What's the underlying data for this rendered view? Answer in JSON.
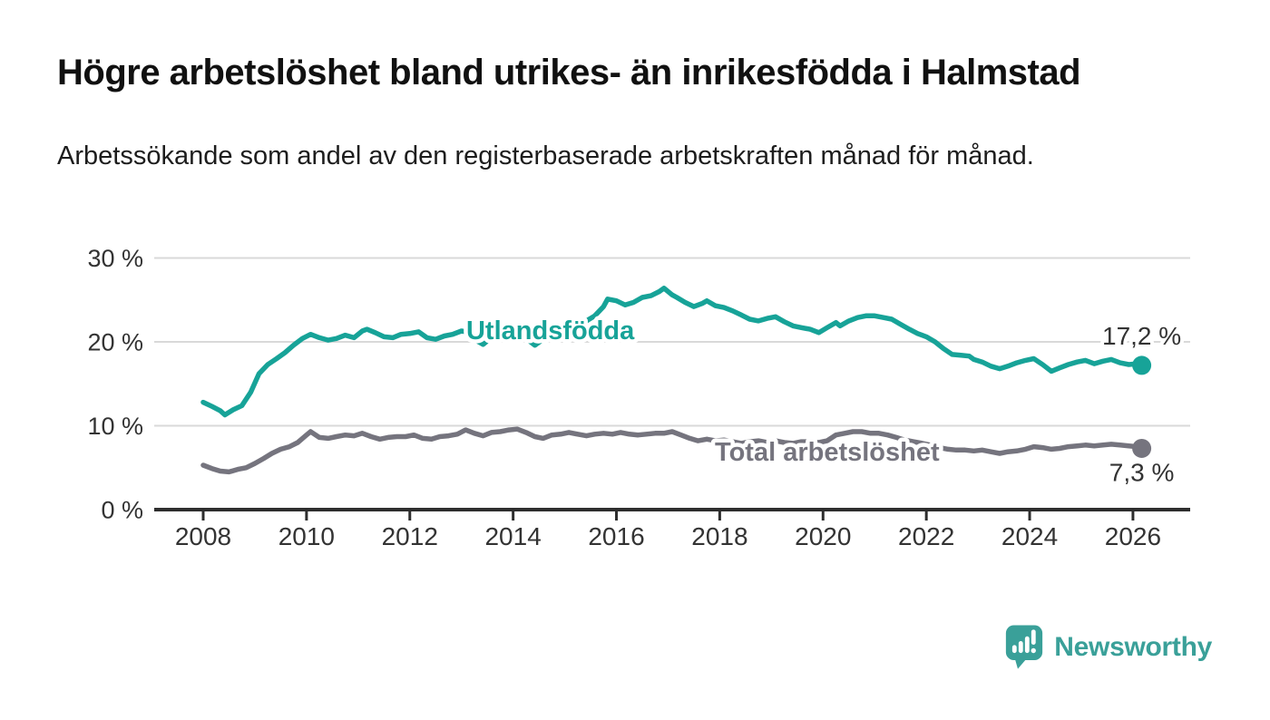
{
  "title": "Högre arbetslöshet bland utrikes- än inrikesfödda i Halmstad",
  "subtitle": "Arbetssökande som andel av den registerbaserade arbetskraften månad för månad.",
  "branding": {
    "name": "Newsworthy",
    "icon": "bar-chart-speech-bubble-icon",
    "color": "#3aa099"
  },
  "colors": {
    "series_foreign_born": "#17a398",
    "series_total": "#75747e",
    "axis": "#2e2e2e",
    "gridline": "#d9d9d9",
    "tick_text": "#333333",
    "value_label_text": "#333333",
    "background": "#ffffff"
  },
  "chart_data": {
    "type": "line",
    "title": "Högre arbetslöshet bland utrikes- än inrikesfödda i Halmstad",
    "subtitle": "Arbetssökande som andel av den registerbaserade arbetskraften månad för månad.",
    "xlabel": "",
    "ylabel": "",
    "x_unit": "year (monthly data)",
    "y_unit": "%",
    "ylim": [
      0,
      30
    ],
    "xlim": [
      2008,
      2027
    ],
    "grid": "horizontal",
    "legend_position": "inline-labels",
    "yticks": [
      0,
      10,
      20,
      30
    ],
    "ytick_labels": [
      "0 %",
      "10 %",
      "20 %",
      "30 %"
    ],
    "xticks": [
      2008,
      2010,
      2012,
      2014,
      2016,
      2018,
      2020,
      2022,
      2024,
      2026
    ],
    "series": [
      {
        "id": "utlandsfodda",
        "name": "Utlandsfödda",
        "color": "#17a398",
        "end_value": 17.2,
        "end_label": "17,2 %",
        "label_position": {
          "x": 2014.72,
          "y": 21.3
        },
        "points": [
          [
            2008.0,
            12.8
          ],
          [
            2008.17,
            12.3
          ],
          [
            2008.33,
            11.8
          ],
          [
            2008.42,
            11.3
          ],
          [
            2008.58,
            11.9
          ],
          [
            2008.75,
            12.4
          ],
          [
            2008.92,
            14.0
          ],
          [
            2009.08,
            16.2
          ],
          [
            2009.25,
            17.3
          ],
          [
            2009.42,
            18.0
          ],
          [
            2009.58,
            18.7
          ],
          [
            2009.75,
            19.6
          ],
          [
            2009.92,
            20.4
          ],
          [
            2010.08,
            20.9
          ],
          [
            2010.25,
            20.5
          ],
          [
            2010.42,
            20.2
          ],
          [
            2010.58,
            20.4
          ],
          [
            2010.75,
            20.8
          ],
          [
            2010.92,
            20.5
          ],
          [
            2011.08,
            21.3
          ],
          [
            2011.17,
            21.5
          ],
          [
            2011.33,
            21.1
          ],
          [
            2011.5,
            20.6
          ],
          [
            2011.67,
            20.5
          ],
          [
            2011.83,
            20.9
          ],
          [
            2012.0,
            21.0
          ],
          [
            2012.17,
            21.2
          ],
          [
            2012.33,
            20.5
          ],
          [
            2012.5,
            20.3
          ],
          [
            2012.67,
            20.7
          ],
          [
            2012.83,
            20.9
          ],
          [
            2013.0,
            21.3
          ],
          [
            2013.17,
            21.1
          ],
          [
            2013.33,
            20.0
          ],
          [
            2013.42,
            19.7
          ],
          [
            2013.58,
            20.5
          ],
          [
            2013.75,
            21.2
          ],
          [
            2013.92,
            21.3
          ],
          [
            2014.08,
            21.2
          ],
          [
            2014.25,
            20.4
          ],
          [
            2014.42,
            19.6
          ],
          [
            2014.58,
            20.3
          ],
          [
            2014.75,
            21.0
          ],
          [
            2014.92,
            21.4
          ],
          [
            2015.08,
            21.7
          ],
          [
            2015.25,
            22.1
          ],
          [
            2015.42,
            22.5
          ],
          [
            2015.58,
            23.1
          ],
          [
            2015.75,
            24.2
          ],
          [
            2015.83,
            25.1
          ],
          [
            2016.0,
            24.9
          ],
          [
            2016.17,
            24.4
          ],
          [
            2016.33,
            24.7
          ],
          [
            2016.5,
            25.3
          ],
          [
            2016.67,
            25.5
          ],
          [
            2016.83,
            26.0
          ],
          [
            2016.92,
            26.4
          ],
          [
            2017.08,
            25.6
          ],
          [
            2017.17,
            25.3
          ],
          [
            2017.33,
            24.7
          ],
          [
            2017.5,
            24.2
          ],
          [
            2017.67,
            24.6
          ],
          [
            2017.75,
            24.9
          ],
          [
            2017.92,
            24.3
          ],
          [
            2018.08,
            24.1
          ],
          [
            2018.25,
            23.7
          ],
          [
            2018.42,
            23.2
          ],
          [
            2018.58,
            22.7
          ],
          [
            2018.75,
            22.5
          ],
          [
            2018.92,
            22.8
          ],
          [
            2019.08,
            23.0
          ],
          [
            2019.25,
            22.4
          ],
          [
            2019.42,
            21.9
          ],
          [
            2019.58,
            21.7
          ],
          [
            2019.75,
            21.5
          ],
          [
            2019.92,
            21.1
          ],
          [
            2020.08,
            21.7
          ],
          [
            2020.25,
            22.3
          ],
          [
            2020.33,
            21.9
          ],
          [
            2020.5,
            22.5
          ],
          [
            2020.67,
            22.9
          ],
          [
            2020.83,
            23.1
          ],
          [
            2021.0,
            23.1
          ],
          [
            2021.17,
            22.9
          ],
          [
            2021.33,
            22.7
          ],
          [
            2021.5,
            22.1
          ],
          [
            2021.67,
            21.5
          ],
          [
            2021.83,
            21.0
          ],
          [
            2022.0,
            20.6
          ],
          [
            2022.17,
            20.0
          ],
          [
            2022.33,
            19.2
          ],
          [
            2022.5,
            18.5
          ],
          [
            2022.67,
            18.4
          ],
          [
            2022.83,
            18.3
          ],
          [
            2022.92,
            17.9
          ],
          [
            2023.08,
            17.6
          ],
          [
            2023.25,
            17.1
          ],
          [
            2023.42,
            16.8
          ],
          [
            2023.58,
            17.1
          ],
          [
            2023.75,
            17.5
          ],
          [
            2023.92,
            17.8
          ],
          [
            2024.08,
            18.0
          ],
          [
            2024.25,
            17.3
          ],
          [
            2024.42,
            16.5
          ],
          [
            2024.58,
            16.9
          ],
          [
            2024.75,
            17.3
          ],
          [
            2024.92,
            17.6
          ],
          [
            2025.08,
            17.8
          ],
          [
            2025.25,
            17.4
          ],
          [
            2025.42,
            17.7
          ],
          [
            2025.58,
            17.9
          ],
          [
            2025.75,
            17.5
          ],
          [
            2025.92,
            17.3
          ],
          [
            2026.08,
            17.4
          ],
          [
            2026.17,
            17.2
          ]
        ]
      },
      {
        "id": "total-arbetsloshet",
        "name": "Total arbetslöshet",
        "color": "#75747e",
        "end_value": 7.3,
        "end_label": "7,3 %",
        "label_position": {
          "x": 2020.08,
          "y": 6.8
        },
        "points": [
          [
            2008.0,
            5.3
          ],
          [
            2008.17,
            4.9
          ],
          [
            2008.33,
            4.6
          ],
          [
            2008.5,
            4.5
          ],
          [
            2008.67,
            4.8
          ],
          [
            2008.83,
            5.0
          ],
          [
            2009.0,
            5.5
          ],
          [
            2009.17,
            6.1
          ],
          [
            2009.33,
            6.7
          ],
          [
            2009.5,
            7.2
          ],
          [
            2009.67,
            7.5
          ],
          [
            2009.83,
            8.0
          ],
          [
            2010.0,
            8.9
          ],
          [
            2010.08,
            9.3
          ],
          [
            2010.25,
            8.6
          ],
          [
            2010.42,
            8.5
          ],
          [
            2010.58,
            8.7
          ],
          [
            2010.75,
            8.9
          ],
          [
            2010.92,
            8.8
          ],
          [
            2011.08,
            9.1
          ],
          [
            2011.25,
            8.7
          ],
          [
            2011.42,
            8.4
          ],
          [
            2011.58,
            8.6
          ],
          [
            2011.75,
            8.7
          ],
          [
            2011.92,
            8.7
          ],
          [
            2012.08,
            8.9
          ],
          [
            2012.25,
            8.5
          ],
          [
            2012.42,
            8.4
          ],
          [
            2012.58,
            8.7
          ],
          [
            2012.75,
            8.8
          ],
          [
            2012.92,
            9.0
          ],
          [
            2013.08,
            9.5
          ],
          [
            2013.25,
            9.1
          ],
          [
            2013.42,
            8.8
          ],
          [
            2013.58,
            9.2
          ],
          [
            2013.75,
            9.3
          ],
          [
            2013.92,
            9.5
          ],
          [
            2014.08,
            9.6
          ],
          [
            2014.25,
            9.2
          ],
          [
            2014.42,
            8.7
          ],
          [
            2014.58,
            8.5
          ],
          [
            2014.75,
            8.9
          ],
          [
            2014.92,
            9.0
          ],
          [
            2015.08,
            9.2
          ],
          [
            2015.25,
            9.0
          ],
          [
            2015.42,
            8.8
          ],
          [
            2015.58,
            9.0
          ],
          [
            2015.75,
            9.1
          ],
          [
            2015.92,
            9.0
          ],
          [
            2016.08,
            9.2
          ],
          [
            2016.25,
            9.0
          ],
          [
            2016.42,
            8.9
          ],
          [
            2016.58,
            9.0
          ],
          [
            2016.75,
            9.1
          ],
          [
            2016.92,
            9.1
          ],
          [
            2017.08,
            9.3
          ],
          [
            2017.25,
            8.9
          ],
          [
            2017.42,
            8.5
          ],
          [
            2017.58,
            8.2
          ],
          [
            2017.75,
            8.4
          ],
          [
            2017.92,
            8.2
          ],
          [
            2018.08,
            8.3
          ],
          [
            2018.25,
            8.1
          ],
          [
            2018.42,
            7.9
          ],
          [
            2018.58,
            8.1
          ],
          [
            2018.75,
            8.2
          ],
          [
            2018.92,
            8.0
          ],
          [
            2019.08,
            8.2
          ],
          [
            2019.25,
            8.0
          ],
          [
            2019.42,
            7.9
          ],
          [
            2019.58,
            8.1
          ],
          [
            2019.75,
            8.1
          ],
          [
            2019.92,
            8.0
          ],
          [
            2020.08,
            8.2
          ],
          [
            2020.25,
            8.9
          ],
          [
            2020.42,
            9.1
          ],
          [
            2020.58,
            9.3
          ],
          [
            2020.75,
            9.3
          ],
          [
            2020.92,
            9.1
          ],
          [
            2021.08,
            9.1
          ],
          [
            2021.25,
            8.9
          ],
          [
            2021.42,
            8.6
          ],
          [
            2021.58,
            8.3
          ],
          [
            2021.75,
            8.1
          ],
          [
            2021.92,
            7.9
          ],
          [
            2022.08,
            7.7
          ],
          [
            2022.25,
            7.4
          ],
          [
            2022.42,
            7.2
          ],
          [
            2022.58,
            7.1
          ],
          [
            2022.75,
            7.1
          ],
          [
            2022.92,
            7.0
          ],
          [
            2023.08,
            7.1
          ],
          [
            2023.25,
            6.9
          ],
          [
            2023.42,
            6.7
          ],
          [
            2023.58,
            6.9
          ],
          [
            2023.75,
            7.0
          ],
          [
            2023.92,
            7.2
          ],
          [
            2024.08,
            7.5
          ],
          [
            2024.25,
            7.4
          ],
          [
            2024.42,
            7.2
          ],
          [
            2024.58,
            7.3
          ],
          [
            2024.75,
            7.5
          ],
          [
            2024.92,
            7.6
          ],
          [
            2025.08,
            7.7
          ],
          [
            2025.25,
            7.6
          ],
          [
            2025.42,
            7.7
          ],
          [
            2025.58,
            7.8
          ],
          [
            2025.75,
            7.7
          ],
          [
            2025.92,
            7.6
          ],
          [
            2026.08,
            7.5
          ],
          [
            2026.17,
            7.3
          ]
        ]
      }
    ]
  }
}
